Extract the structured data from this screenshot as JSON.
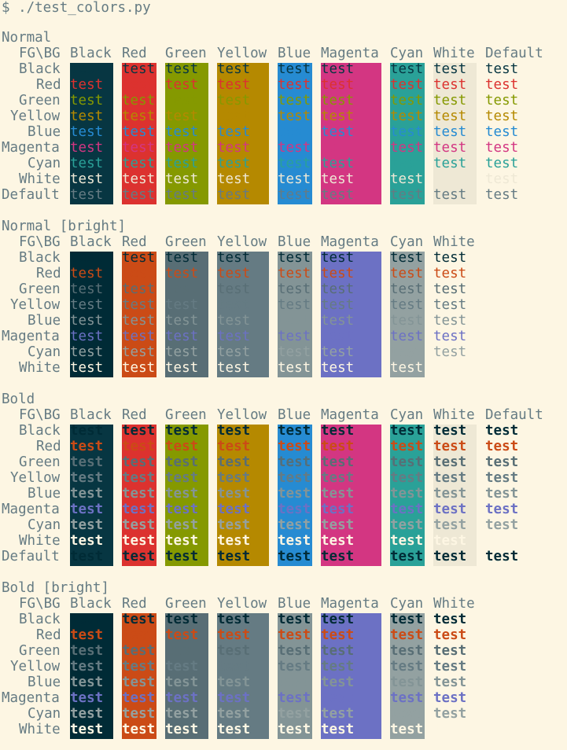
{
  "terminal": {
    "prompt": "$ ./test_colors.py",
    "header_corner": "FG\\BG",
    "sample_text": "test",
    "colors": {
      "normal": {
        "Black": "#073642",
        "Red": "#dc322f",
        "Green": "#859900",
        "Yellow": "#b58900",
        "Blue": "#268bd2",
        "Magenta": "#d33682",
        "Cyan": "#2aa198",
        "White": "#eee8d5",
        "Default": "#657b83"
      },
      "bright": {
        "Black": "#002b36",
        "Red": "#cb4b16",
        "Green": "#586e75",
        "Yellow": "#657b83",
        "Blue": "#839496",
        "Magenta": "#6c71c4",
        "Cyan": "#93a1a1",
        "White": "#fdf6e3"
      },
      "bold_fg": {
        "Black": "#002b36",
        "Red": "#cb4b16",
        "Green": "#586e75",
        "Yellow": "#657b83",
        "Blue": "#839496",
        "Magenta": "#6c71c4",
        "Cyan": "#93a1a1",
        "White": "#fdf6e3",
        "Default": "#002b36"
      },
      "default_fg": "#657b83",
      "default_bg": "#fdf6e3"
    },
    "sections": [
      {
        "title": "Normal",
        "bold": false,
        "fg_palette": "normal",
        "bg_palette": "normal",
        "bg_columns": [
          "Black",
          "Red",
          "Green",
          "Yellow",
          "Blue",
          "Magenta",
          "Cyan",
          "White",
          "Default"
        ],
        "fg_rows": [
          "Black",
          "Red",
          "Green",
          "Yellow",
          "Blue",
          "Magenta",
          "Cyan",
          "White",
          "Default"
        ]
      },
      {
        "title": "Normal [bright]",
        "bold": false,
        "fg_palette": "bright",
        "bg_palette": "bright",
        "bg_columns": [
          "Black",
          "Red",
          "Green",
          "Yellow",
          "Blue",
          "Magenta",
          "Cyan",
          "White"
        ],
        "fg_rows": [
          "Black",
          "Red",
          "Green",
          "Yellow",
          "Blue",
          "Magenta",
          "Cyan",
          "White"
        ]
      },
      {
        "title": "Bold",
        "bold": true,
        "fg_palette": "bold_fg",
        "bg_palette": "normal",
        "bg_columns": [
          "Black",
          "Red",
          "Green",
          "Yellow",
          "Blue",
          "Magenta",
          "Cyan",
          "White",
          "Default"
        ],
        "fg_rows": [
          "Black",
          "Red",
          "Green",
          "Yellow",
          "Blue",
          "Magenta",
          "Cyan",
          "White",
          "Default"
        ]
      },
      {
        "title": "Bold [bright]",
        "bold": true,
        "fg_palette": "bright",
        "bg_palette": "bright",
        "bg_columns": [
          "Black",
          "Red",
          "Green",
          "Yellow",
          "Blue",
          "Magenta",
          "Cyan",
          "White"
        ],
        "fg_rows": [
          "Black",
          "Red",
          "Green",
          "Yellow",
          "Blue",
          "Magenta",
          "Cyan",
          "White"
        ]
      }
    ]
  }
}
